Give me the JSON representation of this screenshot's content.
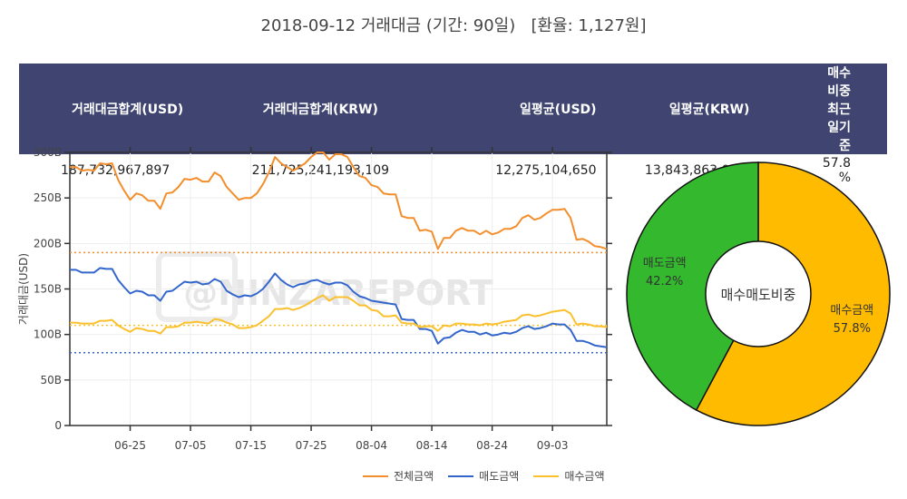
{
  "title": {
    "date": "2018-09-12",
    "name": "거래대금",
    "period_label": "(기간: 90일)",
    "rate_label": "[환율: 1,127원]"
  },
  "summary": {
    "headers": [
      "거래대금합계(USD)",
      "거래대금합계(KRW)",
      "일평균(USD)",
      "일평균(KRW)",
      "매수비중 최근일기준"
    ],
    "values": [
      "187,732,967,897",
      "211,725,241,193,109",
      "12,275,104,650",
      "13,843,863,023,885",
      "57.8 %"
    ]
  },
  "colors": {
    "total": "#f28e2b",
    "sell": "#3366cc",
    "buy": "#fbc02d",
    "pie_buy": "#ffbb00",
    "pie_sell": "#33b82e",
    "header_bg": "#3f4470"
  },
  "chart_data": [
    {
      "type": "line",
      "ylabel": "거래대금(USD)",
      "xlabel": "",
      "x_start": "2018-06-15",
      "x_ticks": [
        "06-25",
        "07-05",
        "07-15",
        "07-25",
        "08-04",
        "08-14",
        "08-24",
        "09-03"
      ],
      "y_ticks": [
        "0",
        "50B",
        "100B",
        "150B",
        "200B",
        "250B",
        "300B"
      ],
      "ylim": [
        0,
        300
      ],
      "y_unit": "B USD",
      "grid": true,
      "series": [
        {
          "name": "전체금액",
          "color_key": "total",
          "values": [
            284,
            284,
            280,
            281,
            280,
            288,
            287,
            288,
            270,
            258,
            248,
            255,
            253,
            247,
            247,
            238,
            255,
            256,
            262,
            271,
            270,
            272,
            268,
            268,
            278,
            274,
            262,
            255,
            248,
            250,
            250,
            255,
            265,
            278,
            295,
            288,
            284,
            280,
            284,
            288,
            295,
            300,
            300,
            292,
            298,
            298,
            295,
            284,
            274,
            272,
            264,
            262,
            255,
            254,
            254,
            230,
            228,
            228,
            214,
            215,
            213,
            194,
            206,
            206,
            214,
            217,
            214,
            214,
            210,
            214,
            210,
            212,
            216,
            216,
            219,
            228,
            231,
            226,
            228,
            233,
            237,
            237,
            238,
            228,
            204,
            205,
            202,
            197,
            196,
            194
          ]
        },
        {
          "name": "매도금액",
          "color_key": "sell",
          "values": [
            171,
            171,
            168,
            168,
            168,
            173,
            172,
            172,
            160,
            152,
            145,
            148,
            147,
            143,
            143,
            137,
            147,
            148,
            153,
            158,
            157,
            158,
            155,
            156,
            161,
            158,
            148,
            144,
            141,
            143,
            142,
            145,
            150,
            158,
            167,
            160,
            155,
            152,
            155,
            156,
            159,
            160,
            157,
            155,
            157,
            157,
            154,
            147,
            142,
            140,
            137,
            136,
            135,
            134,
            133,
            117,
            116,
            116,
            106,
            106,
            104,
            90,
            96,
            97,
            102,
            105,
            103,
            103,
            100,
            102,
            99,
            100,
            102,
            101,
            103,
            107,
            109,
            106,
            107,
            109,
            112,
            111,
            111,
            105,
            93,
            93,
            91,
            88,
            87,
            86
          ]
        },
        {
          "name": "매수금액",
          "color_key": "buy",
          "values": [
            113,
            113,
            112,
            112,
            112,
            115,
            115,
            116,
            110,
            106,
            103,
            107,
            106,
            104,
            104,
            101,
            108,
            108,
            109,
            113,
            113,
            114,
            113,
            112,
            117,
            116,
            113,
            111,
            107,
            107,
            108,
            110,
            115,
            120,
            128,
            128,
            129,
            127,
            129,
            132,
            136,
            140,
            143,
            137,
            141,
            141,
            141,
            137,
            132,
            132,
            127,
            126,
            120,
            120,
            121,
            113,
            112,
            112,
            108,
            109,
            109,
            104,
            110,
            109,
            112,
            112,
            111,
            111,
            110,
            112,
            111,
            112,
            114,
            115,
            116,
            121,
            122,
            120,
            121,
            123,
            125,
            126,
            127,
            123,
            111,
            112,
            111,
            109,
            109,
            108
          ]
        }
      ],
      "reference_lines": [
        {
          "color_key": "total",
          "value": 190
        },
        {
          "color_key": "buy",
          "value": 110
        },
        {
          "color_key": "sell",
          "value": 80
        }
      ],
      "watermark": "@NINZAREPORT"
    },
    {
      "type": "pie",
      "hole": true,
      "center_label": "매수매도비중",
      "slices": [
        {
          "label": "매수금액",
          "value": 57.8,
          "text": "57.8%",
          "color_key": "pie_buy"
        },
        {
          "label": "매도금액",
          "value": 42.2,
          "text": "42.2%",
          "color_key": "pie_sell"
        }
      ]
    }
  ]
}
